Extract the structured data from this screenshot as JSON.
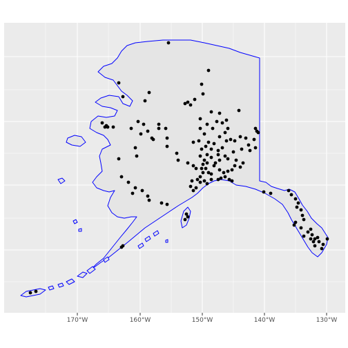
{
  "map": {
    "x_axis": {
      "ticks": [
        {
          "lon": -170,
          "label": "170°W"
        },
        {
          "lon": -160,
          "label": "160°W"
        },
        {
          "lon": -150,
          "label": "150°W"
        },
        {
          "lon": -140,
          "label": "140°W"
        },
        {
          "lon": -130,
          "label": "130°W"
        }
      ]
    },
    "colors": {
      "panel_background": "#ebebeb",
      "grid": "#ffffff",
      "land_fill": "#e5e5e5",
      "outline": "#0000ff",
      "points": "#000000",
      "tick_label": "#4d4d4d"
    },
    "grid": true,
    "point_count_visible": "approx. 160"
  }
}
